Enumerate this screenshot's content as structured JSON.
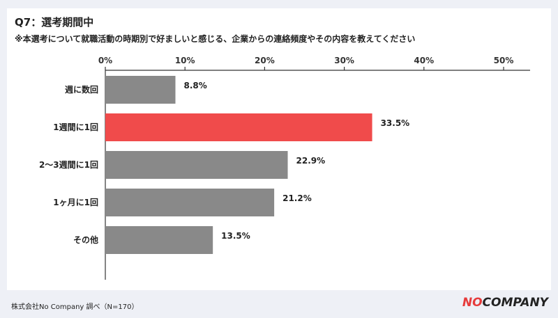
{
  "title": "Q7：選考期間中",
  "subtitle": "※本選考について就職活動の時期別で好ましいと感じる、企業からの連絡頻度やその内容を教えてください",
  "footer_source": "株式会社No Company 調べ（N=170）",
  "logo": {
    "part1": "NO",
    "part2": "COMPANY"
  },
  "colors": {
    "highlight": "#f04b4b",
    "default": "#898989",
    "axis": "#333333"
  },
  "chart_data": {
    "type": "bar",
    "orientation": "horizontal",
    "categories": [
      "週に数回",
      "1週間に1回",
      "2〜3週間に1回",
      "1ヶ月に1回",
      "その他"
    ],
    "values": [
      8.8,
      33.5,
      22.9,
      21.2,
      13.5
    ],
    "value_labels": [
      "8.8%",
      "33.5%",
      "22.9%",
      "21.2%",
      "13.5%"
    ],
    "highlight_index": 1,
    "xlim": [
      0,
      50
    ],
    "xticks": [
      0,
      10,
      20,
      30,
      40,
      50
    ],
    "xtick_labels": [
      "0%",
      "10%",
      "20%",
      "30%",
      "40%",
      "50%"
    ],
    "xaxis_position": "top",
    "grid": false
  }
}
